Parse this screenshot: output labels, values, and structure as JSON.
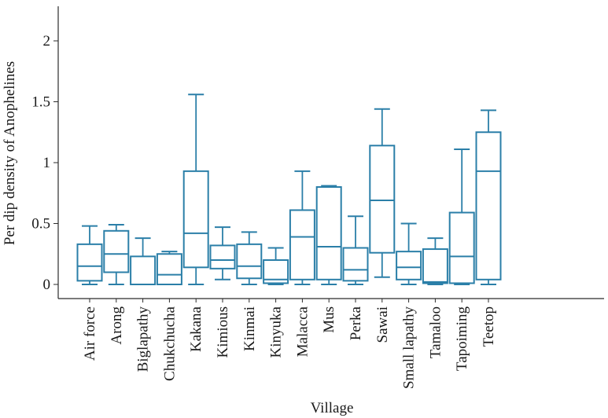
{
  "chart_data": {
    "type": "boxplot",
    "xlabel": "Village",
    "ylabel": "Per dip density of Anophelines",
    "ylim": [
      -0.05,
      2.32
    ],
    "yticks": [
      0,
      0.5,
      1,
      1.5,
      2
    ],
    "ytick_labels": [
      "0",
      "0.5",
      "1",
      "1.5",
      "2"
    ],
    "grid": false,
    "box_color": "#2b7fa8",
    "categories": [
      "Air force",
      "Arong",
      "Biglapathy",
      "Chukchucha",
      "Kakana",
      "Kimious",
      "Kinmai",
      "Kinyuka",
      "Malacca",
      "Mus",
      "Perka",
      "Sawai",
      "Small lapathy",
      "Tamaloo",
      "Tapoiming",
      "Teetop"
    ],
    "boxes": [
      {
        "min": 0.0,
        "q1": 0.03,
        "median": 0.15,
        "q3": 0.33,
        "max": 0.48
      },
      {
        "min": 0.0,
        "q1": 0.1,
        "median": 0.25,
        "q3": 0.44,
        "max": 0.49
      },
      {
        "min": 0.0,
        "q1": 0.0,
        "median": 0.0,
        "q3": 0.23,
        "max": 0.38
      },
      {
        "min": 0.0,
        "q1": 0.0,
        "median": 0.08,
        "q3": 0.25,
        "max": 0.27
      },
      {
        "min": 0.0,
        "q1": 0.14,
        "median": 0.42,
        "q3": 0.93,
        "max": 1.56
      },
      {
        "min": 0.04,
        "q1": 0.13,
        "median": 0.2,
        "q3": 0.32,
        "max": 0.47
      },
      {
        "min": 0.0,
        "q1": 0.05,
        "median": 0.15,
        "q3": 0.33,
        "max": 0.43
      },
      {
        "min": 0.0,
        "q1": 0.01,
        "median": 0.04,
        "q3": 0.2,
        "max": 0.3
      },
      {
        "min": 0.0,
        "q1": 0.04,
        "median": 0.39,
        "q3": 0.61,
        "max": 0.93
      },
      {
        "min": 0.0,
        "q1": 0.04,
        "median": 0.31,
        "q3": 0.8,
        "max": 0.81
      },
      {
        "min": 0.0,
        "q1": 0.03,
        "median": 0.12,
        "q3": 0.3,
        "max": 0.56
      },
      {
        "min": 0.06,
        "q1": 0.26,
        "median": 0.69,
        "q3": 1.14,
        "max": 1.44
      },
      {
        "min": 0.0,
        "q1": 0.04,
        "median": 0.14,
        "q3": 0.27,
        "max": 0.5
      },
      {
        "min": 0.0,
        "q1": 0.01,
        "median": 0.02,
        "q3": 0.29,
        "max": 0.38
      },
      {
        "min": 0.0,
        "q1": 0.01,
        "median": 0.23,
        "q3": 0.59,
        "max": 1.11
      },
      {
        "min": 0.0,
        "q1": 0.04,
        "median": 0.93,
        "q3": 1.25,
        "max": 1.43
      }
    ]
  }
}
